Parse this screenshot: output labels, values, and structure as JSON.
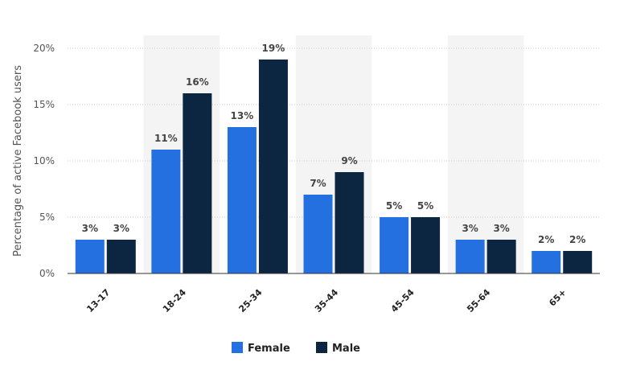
{
  "chart_data": {
    "type": "bar",
    "categories": [
      "13-17",
      "18-24",
      "25-34",
      "35-44",
      "45-54",
      "55-64",
      "65+"
    ],
    "series": [
      {
        "name": "Female",
        "values": [
          3,
          11,
          13,
          7,
          5,
          3,
          2
        ],
        "labels": [
          "3%",
          "11%",
          "13%",
          "7%",
          "5%",
          "3%",
          "2%"
        ],
        "color": "#2470e0"
      },
      {
        "name": "Male",
        "values": [
          3,
          16,
          19,
          9,
          5,
          3,
          2
        ],
        "labels": [
          "3%",
          "16%",
          "19%",
          "9%",
          "5%",
          "3%",
          "2%"
        ],
        "color": "#0c2541"
      }
    ],
    "ylabel": "Percentage of active Facebook users",
    "ylim": [
      0,
      20
    ],
    "yticks": [
      {
        "value": 0,
        "label": "0%"
      },
      {
        "value": 5,
        "label": "5%"
      },
      {
        "value": 10,
        "label": "10%"
      },
      {
        "value": 15,
        "label": "15%"
      },
      {
        "value": 20,
        "label": "20%"
      }
    ],
    "grid": true,
    "legend": "bottom-center",
    "band_color": "#f4f4f4",
    "gridline_color": "#cccccc"
  }
}
